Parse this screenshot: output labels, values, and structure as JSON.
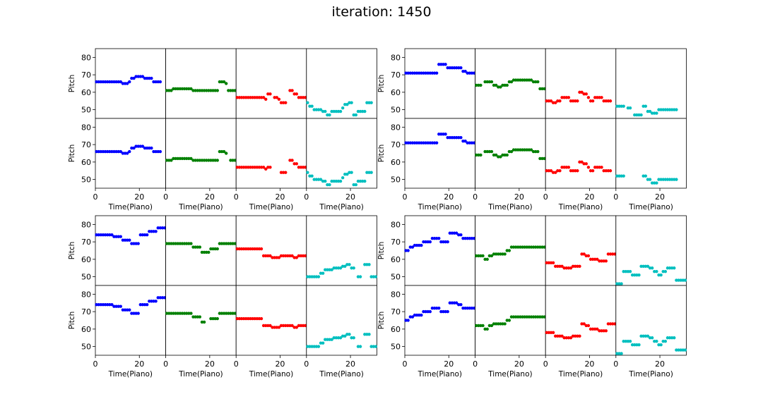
{
  "figure": {
    "title": "iteration: 1450"
  },
  "axes_text": {
    "ylabel": "Pitch",
    "xlabel": "Time(Piano)",
    "yticks": [
      "80",
      "70",
      "60",
      "50"
    ],
    "xticks": [
      "0",
      "20"
    ]
  },
  "colors": [
    "#0000ff",
    "#008000",
    "#ff0000",
    "#00bfbf"
  ],
  "chart_data": {
    "type": "scatter",
    "layout": "4 blocks (2x2); each block has a top row and a bottom row of 4 voice panels",
    "ylabel": "Pitch",
    "xlabel": "Time(Piano)",
    "ylim": [
      45,
      85
    ],
    "xlim": [
      0,
      32
    ],
    "blocks": [
      {
        "top": [
          [
            66,
            66,
            66,
            66,
            66,
            66,
            66,
            66,
            66,
            66,
            66,
            66,
            65,
            65,
            65,
            66,
            68,
            68,
            69,
            69,
            69,
            69,
            68,
            68,
            68,
            68,
            66,
            66,
            66,
            66
          ],
          [
            61,
            61,
            61,
            62,
            62,
            62,
            62,
            62,
            62,
            62,
            62,
            62,
            61,
            61,
            61,
            61,
            61,
            61,
            61,
            61,
            61,
            61,
            61,
            61,
            66,
            66,
            66,
            65,
            61,
            61,
            61,
            61
          ],
          [
            57,
            57,
            57,
            57,
            57,
            57,
            57,
            57,
            57,
            57,
            57,
            57,
            57,
            56,
            59,
            59,
            null,
            57,
            57,
            56,
            54,
            54,
            54,
            null,
            61,
            61,
            59,
            59,
            57,
            57,
            57,
            57
          ],
          [
            54,
            52,
            52,
            50,
            50,
            50,
            50,
            49,
            49,
            47,
            47,
            49,
            49,
            49,
            49,
            49,
            51,
            53,
            53,
            54,
            54,
            47,
            47,
            49,
            49,
            49,
            49,
            54,
            54,
            54
          ]
        ],
        "bottom": [
          [
            66,
            66,
            66,
            66,
            66,
            66,
            66,
            66,
            66,
            66,
            66,
            66,
            65,
            65,
            65,
            66,
            68,
            68,
            69,
            69,
            69,
            69,
            68,
            68,
            68,
            68,
            66,
            66,
            66,
            66
          ],
          [
            61,
            61,
            61,
            62,
            62,
            62,
            62,
            62,
            62,
            62,
            62,
            62,
            61,
            61,
            61,
            61,
            61,
            61,
            61,
            61,
            61,
            61,
            61,
            61,
            66,
            66,
            66,
            65,
            null,
            61,
            61,
            61
          ],
          [
            57,
            57,
            57,
            57,
            57,
            57,
            57,
            57,
            57,
            57,
            57,
            57,
            57,
            56,
            57,
            57,
            null,
            null,
            null,
            null,
            54,
            54,
            54,
            null,
            61,
            61,
            59,
            59,
            57,
            57,
            57,
            57
          ],
          [
            54,
            52,
            52,
            50,
            50,
            50,
            50,
            49,
            49,
            47,
            47,
            49,
            49,
            49,
            49,
            49,
            51,
            53,
            53,
            54,
            54,
            47,
            47,
            49,
            49,
            49,
            49,
            54,
            54,
            54
          ]
        ]
      },
      {
        "top": [
          [
            71,
            71,
            71,
            71,
            71,
            71,
            71,
            71,
            71,
            71,
            71,
            71,
            71,
            71,
            71,
            76,
            76,
            76,
            76,
            74,
            74,
            74,
            74,
            74,
            74,
            74,
            72,
            72,
            71,
            71,
            71,
            71
          ],
          [
            64,
            64,
            64,
            null,
            66,
            66,
            66,
            66,
            64,
            64,
            63,
            63,
            64,
            64,
            64,
            66,
            66,
            67,
            67,
            67,
            67,
            67,
            67,
            67,
            67,
            67,
            66,
            66,
            66,
            62,
            62,
            62
          ],
          [
            55,
            55,
            55,
            54,
            54,
            55,
            55,
            57,
            57,
            57,
            57,
            55,
            55,
            55,
            55,
            60,
            60,
            59,
            59,
            57,
            55,
            55,
            57,
            57,
            57,
            57,
            55,
            55,
            55,
            55
          ],
          [
            52,
            52,
            52,
            52,
            null,
            51,
            51,
            null,
            47,
            47,
            47,
            47,
            52,
            52,
            49,
            49,
            48,
            48,
            48,
            50,
            50,
            50,
            50,
            50,
            50,
            50,
            50,
            50
          ]
        ],
        "bottom": [
          [
            71,
            71,
            71,
            71,
            71,
            71,
            71,
            71,
            71,
            71,
            71,
            71,
            71,
            71,
            71,
            76,
            76,
            76,
            76,
            74,
            74,
            74,
            74,
            74,
            74,
            74,
            72,
            72,
            71,
            71,
            71,
            71
          ],
          [
            64,
            64,
            64,
            null,
            66,
            66,
            66,
            66,
            64,
            64,
            63,
            63,
            64,
            64,
            64,
            66,
            66,
            67,
            67,
            67,
            67,
            67,
            67,
            67,
            67,
            67,
            66,
            66,
            66,
            62,
            62,
            62
          ],
          [
            55,
            55,
            55,
            54,
            54,
            55,
            55,
            57,
            57,
            57,
            57,
            55,
            55,
            55,
            55,
            60,
            60,
            59,
            59,
            57,
            55,
            55,
            57,
            57,
            57,
            57,
            55,
            55,
            55,
            55
          ],
          [
            52,
            52,
            52,
            52,
            null,
            null,
            null,
            null,
            null,
            null,
            null,
            null,
            52,
            52,
            50,
            50,
            48,
            48,
            48,
            50,
            50,
            50,
            50,
            50,
            50,
            50,
            50,
            50
          ]
        ]
      },
      {
        "top": [
          [
            74,
            74,
            74,
            74,
            74,
            74,
            74,
            74,
            73,
            73,
            73,
            73,
            71,
            71,
            71,
            71,
            69,
            69,
            69,
            69,
            74,
            74,
            74,
            74,
            76,
            76,
            76,
            76,
            78,
            78,
            78,
            78
          ],
          [
            69,
            69,
            69,
            69,
            69,
            69,
            69,
            69,
            69,
            69,
            69,
            69,
            67,
            67,
            67,
            67,
            64,
            64,
            64,
            64,
            66,
            66,
            66,
            66,
            69,
            69,
            69,
            69,
            69,
            69,
            69,
            69
          ],
          [
            66,
            66,
            66,
            66,
            66,
            66,
            66,
            66,
            66,
            66,
            66,
            66,
            62,
            62,
            62,
            62,
            61,
            61,
            61,
            61,
            62,
            62,
            62,
            62,
            62,
            62,
            61,
            61,
            62,
            62,
            62,
            62
          ],
          [
            50,
            50,
            50,
            50,
            50,
            50,
            52,
            52,
            54,
            54,
            54,
            54,
            55,
            55,
            55,
            55,
            56,
            56,
            57,
            57,
            55,
            55,
            null,
            50,
            50,
            null,
            57,
            57,
            57,
            50,
            50,
            50
          ]
        ],
        "bottom": [
          [
            74,
            74,
            74,
            74,
            74,
            74,
            74,
            74,
            73,
            73,
            73,
            73,
            71,
            71,
            71,
            71,
            69,
            69,
            69,
            69,
            74,
            74,
            74,
            74,
            76,
            76,
            76,
            76,
            78,
            78,
            78,
            78
          ],
          [
            69,
            69,
            69,
            69,
            69,
            69,
            69,
            69,
            69,
            69,
            69,
            69,
            67,
            67,
            67,
            67,
            64,
            64,
            null,
            null,
            66,
            66,
            66,
            66,
            69,
            69,
            69,
            69,
            69,
            69,
            69,
            69
          ],
          [
            66,
            66,
            66,
            66,
            66,
            66,
            66,
            66,
            66,
            66,
            66,
            66,
            62,
            62,
            62,
            62,
            61,
            61,
            61,
            61,
            62,
            62,
            62,
            62,
            62,
            62,
            61,
            61,
            62,
            62,
            62,
            62
          ],
          [
            50,
            50,
            50,
            50,
            50,
            50,
            52,
            52,
            54,
            54,
            54,
            54,
            55,
            55,
            55,
            55,
            56,
            56,
            57,
            57,
            55,
            55,
            null,
            50,
            50,
            null,
            57,
            57,
            57,
            50,
            50,
            50
          ]
        ]
      },
      {
        "top": [
          [
            65,
            65,
            67,
            67,
            68,
            68,
            68,
            68,
            70,
            70,
            70,
            70,
            72,
            72,
            72,
            72,
            70,
            70,
            70,
            70,
            75,
            75,
            75,
            75,
            74,
            74,
            72,
            72,
            72,
            72,
            72,
            72
          ],
          [
            62,
            62,
            62,
            62,
            60,
            60,
            62,
            62,
            63,
            63,
            63,
            63,
            63,
            63,
            65,
            65,
            67,
            67,
            67,
            67,
            67,
            67,
            67,
            67,
            67,
            67,
            67,
            67,
            67,
            67,
            67,
            67
          ],
          [
            58,
            58,
            58,
            58,
            56,
            56,
            56,
            56,
            55,
            55,
            55,
            55,
            56,
            56,
            56,
            56,
            63,
            63,
            62,
            62,
            60,
            60,
            60,
            60,
            59,
            59,
            59,
            59,
            63,
            63,
            63,
            63
          ],
          [
            46,
            46,
            46,
            53,
            53,
            53,
            53,
            51,
            51,
            51,
            51,
            56,
            56,
            56,
            56,
            55,
            55,
            53,
            53,
            51,
            51,
            53,
            53,
            55,
            55,
            55,
            55,
            48,
            48,
            48,
            48,
            48
          ]
        ],
        "bottom": [
          [
            65,
            65,
            67,
            67,
            68,
            68,
            68,
            68,
            70,
            70,
            70,
            70,
            72,
            72,
            72,
            72,
            70,
            70,
            70,
            70,
            75,
            75,
            75,
            75,
            74,
            74,
            72,
            72,
            72,
            72,
            72,
            72
          ],
          [
            62,
            62,
            62,
            62,
            60,
            60,
            62,
            62,
            63,
            63,
            63,
            63,
            63,
            63,
            65,
            65,
            67,
            67,
            67,
            67,
            67,
            67,
            67,
            67,
            67,
            67,
            67,
            67,
            67,
            67,
            67,
            67
          ],
          [
            58,
            58,
            58,
            58,
            56,
            56,
            56,
            56,
            55,
            55,
            55,
            55,
            56,
            56,
            56,
            56,
            63,
            63,
            62,
            62,
            60,
            60,
            60,
            60,
            59,
            59,
            59,
            59,
            63,
            63,
            63,
            63
          ],
          [
            46,
            46,
            46,
            53,
            53,
            53,
            53,
            51,
            51,
            51,
            51,
            56,
            56,
            56,
            56,
            55,
            55,
            53,
            53,
            51,
            51,
            53,
            53,
            55,
            55,
            55,
            55,
            48,
            48,
            48,
            48,
            48
          ]
        ]
      }
    ]
  }
}
